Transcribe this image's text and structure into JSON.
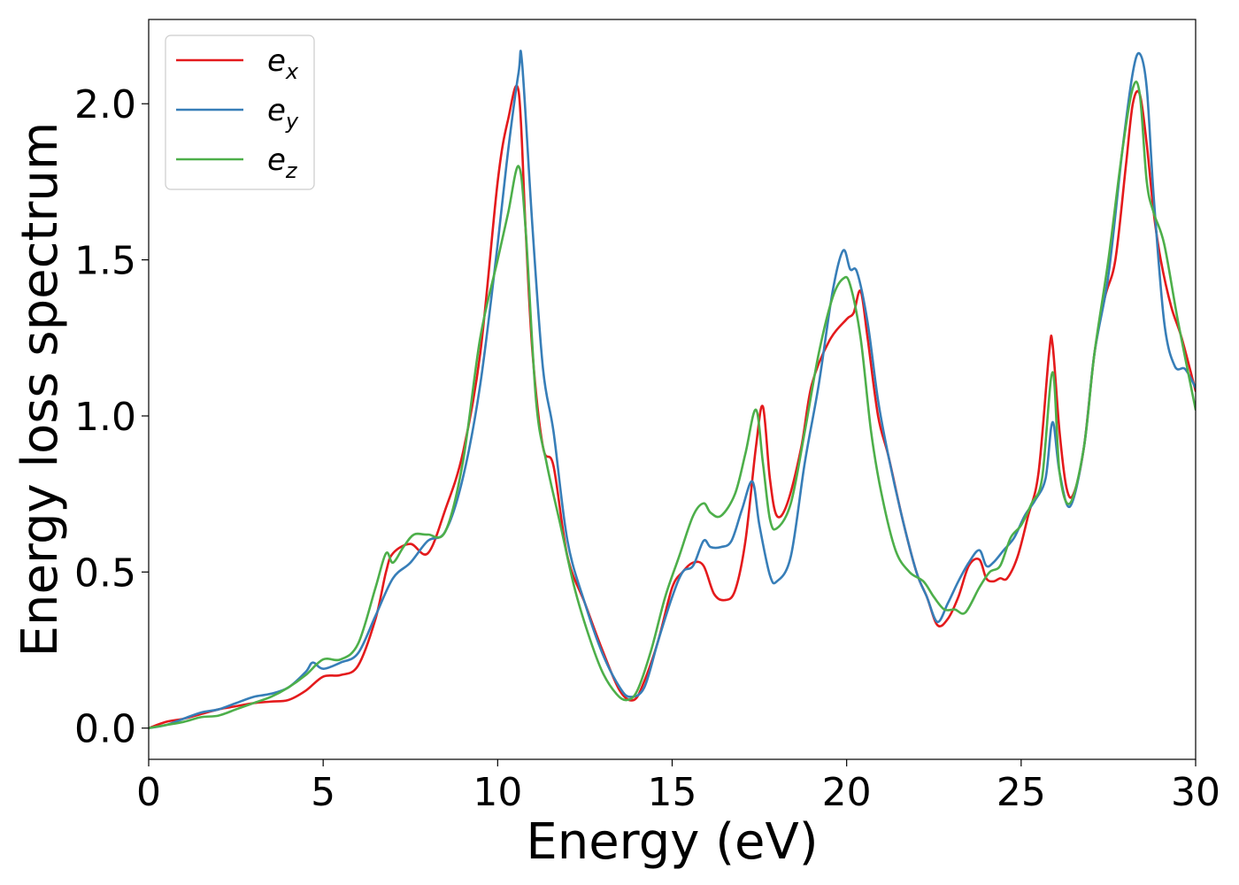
{
  "chart_data": {
    "type": "line",
    "title": "",
    "xlabel": "Energy (eV)",
    "ylabel": "Energy loss spectrum",
    "xlim": [
      0,
      30
    ],
    "ylim": [
      -0.1,
      2.27
    ],
    "xticks": [
      0,
      5,
      10,
      15,
      20,
      25,
      30
    ],
    "xtick_labels": [
      "0",
      "5",
      "10",
      "15",
      "20",
      "25",
      "30"
    ],
    "yticks": [
      0.0,
      0.5,
      1.0,
      1.5,
      2.0
    ],
    "ytick_labels": [
      "0.0",
      "0.5",
      "1.0",
      "1.5",
      "2.0"
    ],
    "grid": false,
    "legend_position": "top-left",
    "series": [
      {
        "name": "e",
        "subscript": "x",
        "color": "#e41a1c",
        "x": [
          0,
          0.5,
          1,
          1.5,
          2,
          2.5,
          3,
          3.5,
          4,
          4.5,
          5,
          5.5,
          6,
          6.5,
          6.8,
          7,
          7.5,
          8,
          8.5,
          9,
          9.5,
          10,
          10.3,
          10.6,
          10.8,
          11,
          11.3,
          11.6,
          12,
          12.5,
          13,
          13.5,
          13.9,
          14.2,
          14.6,
          15,
          15.3,
          15.6,
          15.9,
          16.2,
          16.5,
          16.8,
          17.1,
          17.4,
          17.6,
          17.8,
          18,
          18.3,
          18.7,
          19,
          19.5,
          20,
          20.2,
          20.4,
          20.6,
          20.9,
          21.2,
          21.6,
          22,
          22.3,
          22.6,
          22.9,
          23.2,
          23.5,
          23.8,
          24,
          24.2,
          24.4,
          24.6,
          24.9,
          25.2,
          25.5,
          25.8,
          25.9,
          26.1,
          26.3,
          26.5,
          26.8,
          27.1,
          27.4,
          27.7,
          28,
          28.2,
          28.4,
          28.6,
          28.8,
          29,
          29.3,
          29.6,
          30
        ],
        "y": [
          0.0,
          0.02,
          0.03,
          0.045,
          0.06,
          0.07,
          0.08,
          0.085,
          0.09,
          0.12,
          0.165,
          0.17,
          0.2,
          0.35,
          0.5,
          0.56,
          0.59,
          0.56,
          0.7,
          0.88,
          1.2,
          1.75,
          1.95,
          2.04,
          1.6,
          1.2,
          0.9,
          0.84,
          0.55,
          0.4,
          0.25,
          0.12,
          0.09,
          0.15,
          0.28,
          0.45,
          0.5,
          0.53,
          0.52,
          0.43,
          0.41,
          0.44,
          0.6,
          0.9,
          1.03,
          0.8,
          0.68,
          0.72,
          0.9,
          1.1,
          1.24,
          1.31,
          1.33,
          1.4,
          1.25,
          1.0,
          0.87,
          0.67,
          0.5,
          0.42,
          0.33,
          0.35,
          0.42,
          0.52,
          0.54,
          0.48,
          0.47,
          0.48,
          0.48,
          0.55,
          0.68,
          0.82,
          1.2,
          1.23,
          0.95,
          0.77,
          0.75,
          0.9,
          1.2,
          1.38,
          1.5,
          1.8,
          2.0,
          2.03,
          1.87,
          1.65,
          1.5,
          1.35,
          1.25,
          1.08
        ]
      },
      {
        "name": "e",
        "subscript": "y",
        "color": "#377eb8",
        "x": [
          0,
          0.5,
          1,
          1.5,
          2,
          2.5,
          3,
          3.5,
          4,
          4.5,
          4.7,
          5,
          5.5,
          6,
          6.5,
          7,
          7.5,
          8,
          8.5,
          9,
          9.5,
          10,
          10.3,
          10.6,
          10.7,
          11,
          11.3,
          11.6,
          12,
          12.5,
          13,
          13.5,
          13.8,
          14.2,
          14.6,
          15,
          15.3,
          15.6,
          15.9,
          16.1,
          16.4,
          16.7,
          17,
          17.3,
          17.5,
          17.8,
          18,
          18.4,
          18.8,
          19.2,
          19.6,
          19.9,
          20.1,
          20.3,
          20.6,
          20.9,
          21.2,
          21.6,
          22,
          22.3,
          22.6,
          22.9,
          23.2,
          23.5,
          23.8,
          24,
          24.2,
          24.5,
          24.8,
          25.1,
          25.4,
          25.7,
          25.9,
          26.1,
          26.4,
          26.8,
          27.1,
          27.5,
          27.9,
          28.2,
          28.4,
          28.6,
          28.8,
          29.1,
          29.4,
          29.7,
          30
        ],
        "y": [
          0.0,
          0.01,
          0.03,
          0.05,
          0.06,
          0.08,
          0.1,
          0.11,
          0.13,
          0.18,
          0.21,
          0.19,
          0.21,
          0.24,
          0.36,
          0.48,
          0.53,
          0.6,
          0.63,
          0.8,
          1.1,
          1.55,
          1.85,
          2.1,
          2.13,
          1.6,
          1.15,
          0.95,
          0.6,
          0.4,
          0.24,
          0.13,
          0.1,
          0.13,
          0.28,
          0.42,
          0.5,
          0.52,
          0.6,
          0.58,
          0.58,
          0.6,
          0.7,
          0.79,
          0.65,
          0.49,
          0.47,
          0.55,
          0.85,
          1.1,
          1.4,
          1.53,
          1.47,
          1.46,
          1.3,
          1.05,
          0.87,
          0.67,
          0.5,
          0.42,
          0.34,
          0.4,
          0.47,
          0.53,
          0.57,
          0.52,
          0.53,
          0.57,
          0.61,
          0.68,
          0.73,
          0.8,
          0.98,
          0.82,
          0.71,
          0.9,
          1.2,
          1.45,
          1.85,
          2.1,
          2.16,
          2.05,
          1.7,
          1.3,
          1.16,
          1.15,
          1.09
        ]
      },
      {
        "name": "e",
        "subscript": "z",
        "color": "#4daf4a",
        "x": [
          0,
          0.5,
          1,
          1.5,
          2,
          2.5,
          3,
          3.5,
          4,
          4.5,
          5,
          5.5,
          6,
          6.5,
          6.8,
          7,
          7.3,
          7.6,
          8,
          8.5,
          9,
          9.5,
          10,
          10.3,
          10.6,
          10.8,
          11.1,
          11.4,
          11.8,
          12.2,
          12.6,
          13,
          13.4,
          13.7,
          14,
          14.4,
          14.8,
          15.2,
          15.6,
          15.9,
          16.1,
          16.4,
          16.8,
          17.1,
          17.4,
          17.6,
          17.8,
          18,
          18.4,
          18.8,
          19.2,
          19.6,
          19.9,
          20.1,
          20.4,
          20.7,
          21,
          21.4,
          21.8,
          22.2,
          22.5,
          22.8,
          23.1,
          23.4,
          23.8,
          24.1,
          24.4,
          24.7,
          25,
          25.3,
          25.6,
          25.9,
          26.1,
          26.4,
          26.8,
          27.1,
          27.5,
          27.9,
          28.2,
          28.4,
          28.6,
          28.8,
          29.1,
          29.5,
          30
        ],
        "y": [
          0.0,
          0.01,
          0.02,
          0.035,
          0.04,
          0.06,
          0.08,
          0.1,
          0.13,
          0.17,
          0.22,
          0.22,
          0.27,
          0.45,
          0.56,
          0.53,
          0.58,
          0.62,
          0.62,
          0.63,
          0.85,
          1.25,
          1.5,
          1.65,
          1.8,
          1.6,
          1.05,
          0.85,
          0.65,
          0.45,
          0.3,
          0.18,
          0.11,
          0.09,
          0.12,
          0.25,
          0.42,
          0.55,
          0.68,
          0.72,
          0.69,
          0.68,
          0.75,
          0.88,
          1.02,
          0.85,
          0.67,
          0.64,
          0.72,
          0.95,
          1.2,
          1.38,
          1.44,
          1.42,
          1.25,
          0.95,
          0.75,
          0.57,
          0.5,
          0.47,
          0.42,
          0.38,
          0.38,
          0.37,
          0.45,
          0.5,
          0.52,
          0.61,
          0.65,
          0.72,
          0.8,
          1.14,
          0.82,
          0.72,
          0.9,
          1.2,
          1.5,
          1.85,
          2.05,
          2.03,
          1.75,
          1.65,
          1.55,
          1.3,
          1.02
        ]
      }
    ]
  }
}
